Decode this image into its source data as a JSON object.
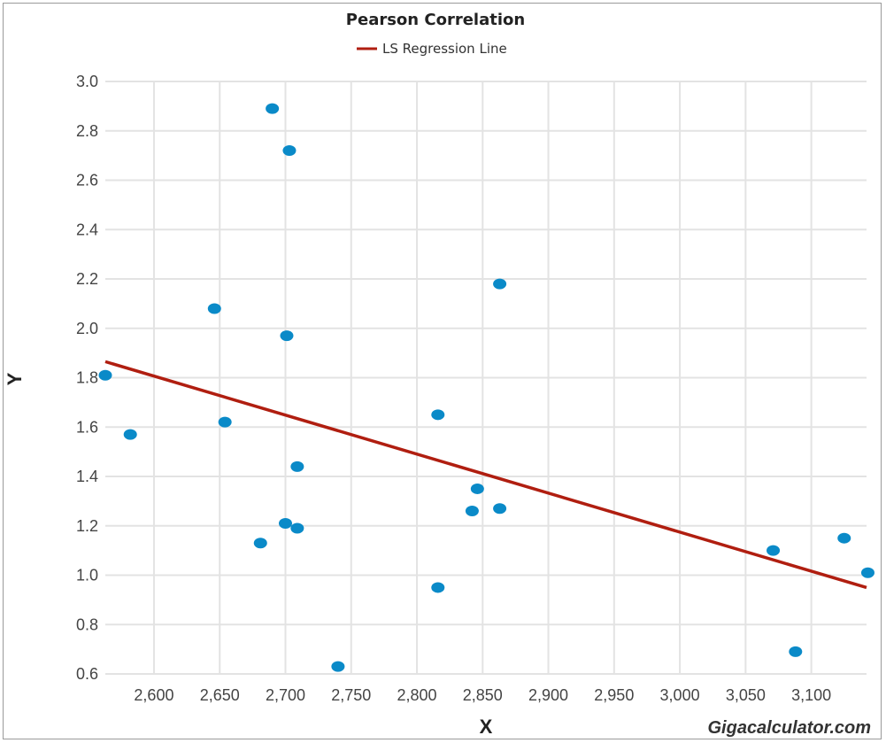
{
  "chart_data": {
    "type": "scatter",
    "title": "Pearson Correlation",
    "xlabel": "X",
    "ylabel": "Y",
    "xlim": [
      2563,
      3142
    ],
    "ylim": [
      0.6,
      3.0
    ],
    "x_ticks": [
      2600,
      2650,
      2700,
      2750,
      2800,
      2850,
      2900,
      2950,
      3000,
      3050,
      3100
    ],
    "x_tick_labels": [
      "2,600",
      "2,650",
      "2,700",
      "2,750",
      "2,800",
      "2,850",
      "2,900",
      "2,950",
      "3,000",
      "3,050",
      "3,100"
    ],
    "y_ticks": [
      0.6,
      0.8,
      1.0,
      1.2,
      1.4,
      1.6,
      1.8,
      2.0,
      2.2,
      2.4,
      2.6,
      2.8,
      3.0
    ],
    "y_tick_labels": [
      "0.6",
      "0.8",
      "1.0",
      "1.2",
      "1.4",
      "1.6",
      "1.8",
      "2.0",
      "2.2",
      "2.4",
      "2.6",
      "2.8",
      "3.0"
    ],
    "grid": true,
    "legend_position": "top-center",
    "series": [
      {
        "name": "",
        "color": "#0a8ac8",
        "points": [
          {
            "x": 2563,
            "y": 1.81
          },
          {
            "x": 2582,
            "y": 1.57
          },
          {
            "x": 2646,
            "y": 2.08
          },
          {
            "x": 2654,
            "y": 1.62
          },
          {
            "x": 2681,
            "y": 1.13
          },
          {
            "x": 2690,
            "y": 2.89
          },
          {
            "x": 2700,
            "y": 1.21
          },
          {
            "x": 2701,
            "y": 1.97
          },
          {
            "x": 2703,
            "y": 2.72
          },
          {
            "x": 2709,
            "y": 1.44
          },
          {
            "x": 2709,
            "y": 1.19
          },
          {
            "x": 2740,
            "y": 0.63
          },
          {
            "x": 2816,
            "y": 1.65
          },
          {
            "x": 2816,
            "y": 0.95
          },
          {
            "x": 2842,
            "y": 1.26
          },
          {
            "x": 2846,
            "y": 1.35
          },
          {
            "x": 2863,
            "y": 2.18
          },
          {
            "x": 2863,
            "y": 1.27
          },
          {
            "x": 3071,
            "y": 1.1
          },
          {
            "x": 3088,
            "y": 0.69
          },
          {
            "x": 3125,
            "y": 1.15
          },
          {
            "x": 3143,
            "y": 1.01
          }
        ]
      },
      {
        "name": "LS Regression Line",
        "type": "line",
        "color": "#b01e10",
        "points": [
          {
            "x": 2563,
            "y": 1.865
          },
          {
            "x": 3142,
            "y": 0.95
          }
        ]
      }
    ]
  },
  "watermark": "Gigacalculator.com"
}
